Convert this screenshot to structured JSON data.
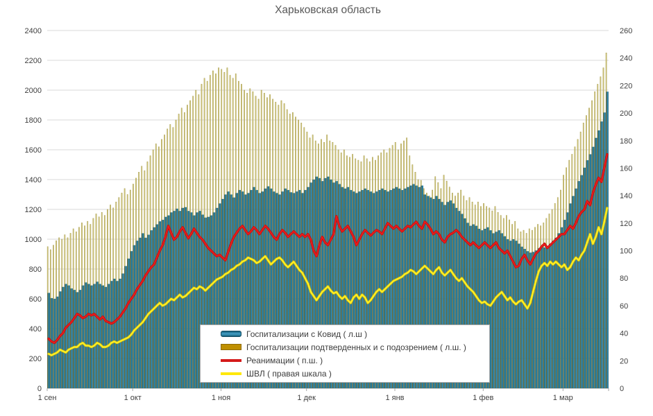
{
  "title": "Харьковская область",
  "legend": {
    "items": [
      {
        "label": "Госпитализации с Ковид ( л.ш )",
        "swatch": "bar-blue"
      },
      {
        "label": "Госпитализации подтверденных и с подозрением ( л.ш. )",
        "swatch": "bar-darkyellow"
      },
      {
        "label": "Реанимации ( п.ш. )",
        "swatch": "line-red"
      },
      {
        "label": "ШВЛ ( правая шкала )",
        "swatch": "line-yellow"
      }
    ]
  },
  "colors": {
    "grid": "#d9d9d9",
    "axis_text": "#404040",
    "title_text": "#595959",
    "axis_line": "#a6a6a6",
    "bar_blue_dark": "#185a73",
    "bar_blue_light": "#2f8fb4",
    "bar_khaki_shadow": "#5e6b40",
    "bar_khaki_light": "#d5cb81",
    "bar_khaki_edge": "#a99d4e",
    "legend_khaki": "#bf8f00",
    "line_red_dark": "#bb0d0d",
    "line_red": "#ea1c1c",
    "line_yellow_dark": "#dcc900",
    "line_yellow": "#ffee2b"
  },
  "chart_data": {
    "type": "combo",
    "title": "Харьковская область",
    "n_days": 197,
    "x_start_label": "1 сен",
    "x_tick_labels": [
      "1 сен",
      "1 окт",
      "1 ноя",
      "1 дек",
      "1 янв",
      "1 фев",
      "1 мар"
    ],
    "x_tick_day_index": [
      0,
      30,
      61,
      91,
      122,
      153,
      181
    ],
    "left_axis": {
      "min": 0,
      "max": 2400,
      "step": 200
    },
    "right_axis": {
      "min": 0,
      "max": 260,
      "step": 20
    },
    "left_ticks": [
      0,
      200,
      400,
      600,
      800,
      1000,
      1200,
      1400,
      1600,
      1800,
      2000,
      2200,
      2400
    ],
    "right_ticks": [
      0,
      20,
      40,
      60,
      80,
      100,
      120,
      140,
      160,
      180,
      200,
      220,
      240,
      260
    ],
    "grid": "horizontal",
    "legend_position": "bottom-center-overlay",
    "series": [
      {
        "name": "Госпитализации с Ковид ( л.ш )",
        "type": "bar",
        "axis": "left",
        "values": [
          640,
          605,
          600,
          615,
          650,
          680,
          700,
          690,
          670,
          660,
          645,
          660,
          690,
          710,
          700,
          690,
          700,
          715,
          700,
          690,
          680,
          700,
          720,
          735,
          720,
          735,
          770,
          820,
          870,
          920,
          960,
          990,
          1010,
          1040,
          1010,
          1030,
          1060,
          1080,
          1100,
          1120,
          1130,
          1150,
          1160,
          1180,
          1190,
          1205,
          1190,
          1210,
          1215,
          1190,
          1180,
          1160,
          1180,
          1190,
          1165,
          1145,
          1150,
          1160,
          1180,
          1210,
          1240,
          1270,
          1300,
          1320,
          1300,
          1280,
          1310,
          1330,
          1320,
          1300,
          1310,
          1330,
          1350,
          1330,
          1310,
          1320,
          1340,
          1355,
          1340,
          1320,
          1310,
          1300,
          1320,
          1340,
          1330,
          1315,
          1310,
          1320,
          1330,
          1310,
          1330,
          1350,
          1380,
          1400,
          1420,
          1410,
          1390,
          1410,
          1420,
          1400,
          1380,
          1390,
          1370,
          1350,
          1340,
          1350,
          1330,
          1320,
          1310,
          1320,
          1330,
          1340,
          1330,
          1320,
          1310,
          1320,
          1330,
          1340,
          1330,
          1320,
          1330,
          1340,
          1350,
          1340,
          1330,
          1340,
          1350,
          1360,
          1370,
          1360,
          1350,
          1360,
          1300,
          1290,
          1280,
          1270,
          1290,
          1270,
          1250,
          1230,
          1250,
          1260,
          1240,
          1210,
          1190,
          1170,
          1140,
          1110,
          1090,
          1100,
          1090,
          1070,
          1060,
          1070,
          1080,
          1060,
          1040,
          1050,
          1060,
          1040,
          1020,
          1000,
          990,
          1000,
          990,
          970,
          950,
          935,
          920,
          910,
          915,
          925,
          940,
          950,
          945,
          955,
          970,
          990,
          1010,
          1040,
          1080,
          1130,
          1180,
          1240,
          1290,
          1340,
          1390,
          1430,
          1480,
          1530,
          1570,
          1620,
          1680,
          1730,
          1790,
          1850,
          1990
        ]
      },
      {
        "name": "Госпитализации подтверденных и с подозрением ( л.ш. )",
        "type": "bar",
        "axis": "left",
        "values": [
          950,
          930,
          960,
          990,
          1010,
          1000,
          1030,
          1010,
          1040,
          1070,
          1050,
          1080,
          1110,
          1090,
          1120,
          1100,
          1140,
          1170,
          1150,
          1180,
          1160,
          1200,
          1230,
          1210,
          1250,
          1280,
          1310,
          1340,
          1300,
          1330,
          1370,
          1410,
          1450,
          1490,
          1460,
          1520,
          1560,
          1600,
          1640,
          1620,
          1670,
          1700,
          1740,
          1770,
          1750,
          1800,
          1840,
          1880,
          1850,
          1900,
          1930,
          1960,
          2000,
          1970,
          2040,
          2080,
          2060,
          2100,
          2130,
          2110,
          2150,
          2140,
          2120,
          2150,
          2100,
          2080,
          2110,
          2060,
          2040,
          2000,
          1980,
          2010,
          1990,
          1960,
          1940,
          2000,
          1980,
          1950,
          1970,
          1940,
          1920,
          1900,
          1930,
          1910,
          1870,
          1840,
          1850,
          1820,
          1800,
          1780,
          1750,
          1720,
          1680,
          1700,
          1660,
          1640,
          1670,
          1650,
          1700,
          1660,
          1650,
          1630,
          1600,
          1580,
          1600,
          1560,
          1550,
          1570,
          1540,
          1530,
          1520,
          1560,
          1540,
          1520,
          1550,
          1530,
          1560,
          1580,
          1600,
          1580,
          1610,
          1630,
          1650,
          1600,
          1640,
          1660,
          1680,
          1560,
          1500,
          1450,
          1400,
          1395,
          1340,
          1310,
          1290,
          1330,
          1420,
          1380,
          1340,
          1430,
          1390,
          1350,
          1310,
          1290,
          1310,
          1330,
          1290,
          1260,
          1280,
          1250,
          1230,
          1250,
          1220,
          1240,
          1220,
          1210,
          1190,
          1220,
          1180,
          1160,
          1140,
          1160,
          1130,
          1100,
          1120,
          1070,
          1050,
          1060,
          1040,
          1070,
          1060,
          1080,
          1100,
          1090,
          1110,
          1140,
          1170,
          1200,
          1240,
          1280,
          1330,
          1430,
          1480,
          1530,
          1570,
          1620,
          1670,
          1720,
          1780,
          1830,
          1880,
          1930,
          1990,
          2040,
          2090,
          2150,
          2250
        ]
      },
      {
        "name": "Реанимации ( п.ш. )",
        "type": "line",
        "axis": "right",
        "values": [
          36,
          34,
          33,
          35,
          38,
          40,
          44,
          46,
          48,
          51,
          54,
          53,
          51,
          52,
          54,
          53,
          54,
          52,
          50,
          52,
          49,
          48,
          47,
          48,
          50,
          52,
          55,
          58,
          62,
          65,
          68,
          72,
          75,
          78,
          82,
          85,
          88,
          90,
          95,
          100,
          104,
          110,
          118,
          113,
          108,
          110,
          114,
          117,
          113,
          109,
          112,
          116,
          113,
          110,
          108,
          105,
          102,
          100,
          98,
          96,
          97,
          95,
          93,
          99,
          105,
          110,
          113,
          116,
          118,
          115,
          112,
          114,
          117,
          115,
          112,
          115,
          118,
          116,
          113,
          110,
          108,
          112,
          115,
          113,
          110,
          112,
          114,
          112,
          110,
          112,
          110,
          112,
          108,
          100,
          96,
          104,
          110,
          106,
          104,
          108,
          112,
          125,
          118,
          114,
          116,
          118,
          114,
          110,
          104,
          108,
          112,
          115,
          113,
          111,
          113,
          115,
          114,
          112,
          116,
          120,
          118,
          116,
          118,
          116,
          114,
          116,
          118,
          117,
          119,
          121,
          118,
          116,
          121,
          119,
          116,
          112,
          114,
          112,
          108,
          106,
          110,
          112,
          113,
          115,
          113,
          110,
          108,
          106,
          104,
          106,
          104,
          102,
          104,
          106,
          104,
          102,
          104,
          106,
          102,
          100,
          98,
          100,
          96,
          92,
          88,
          89,
          94,
          97,
          93,
          90,
          94,
          98,
          100,
          103,
          105,
          102,
          104,
          106,
          108,
          110,
          112,
          112,
          115,
          118,
          116,
          120,
          125,
          128,
          130,
          136,
          133,
          142,
          148,
          153,
          150,
          160,
          170
        ]
      },
      {
        "name": "ШВЛ ( правая шкала )",
        "type": "line",
        "axis": "right",
        "values": [
          25,
          24,
          25,
          26,
          28,
          27,
          26,
          28,
          29,
          30,
          30,
          32,
          33,
          31,
          31,
          30,
          31,
          33,
          32,
          30,
          30,
          31,
          33,
          34,
          33,
          34,
          35,
          36,
          37,
          39,
          42,
          44,
          46,
          48,
          51,
          54,
          56,
          58,
          60,
          62,
          60,
          61,
          63,
          65,
          64,
          66,
          68,
          66,
          67,
          69,
          71,
          73,
          72,
          74,
          73,
          71,
          73,
          75,
          77,
          79,
          80,
          81,
          83,
          84,
          86,
          87,
          89,
          90,
          92,
          93,
          95,
          94,
          93,
          91,
          92,
          94,
          96,
          93,
          90,
          92,
          94,
          95,
          93,
          90,
          88,
          90,
          92,
          89,
          86,
          84,
          80,
          76,
          70,
          67,
          64,
          67,
          70,
          72,
          74,
          71,
          69,
          70,
          67,
          65,
          67,
          64,
          62,
          66,
          68,
          65,
          68,
          66,
          62,
          64,
          67,
          70,
          72,
          70,
          72,
          74,
          76,
          78,
          79,
          80,
          81,
          83,
          84,
          86,
          85,
          83,
          85,
          87,
          89,
          87,
          85,
          83,
          86,
          88,
          84,
          82,
          84,
          86,
          83,
          80,
          78,
          80,
          77,
          74,
          72,
          70,
          67,
          64,
          62,
          63,
          61,
          60,
          63,
          66,
          68,
          70,
          67,
          64,
          66,
          63,
          61,
          63,
          64,
          61,
          58,
          62,
          70,
          78,
          85,
          89,
          91,
          89,
          92,
          90,
          92,
          90,
          88,
          90,
          86,
          88,
          92,
          95,
          93,
          97,
          100,
          106,
          112,
          105,
          110,
          117,
          112,
          121,
          131
        ]
      }
    ]
  }
}
